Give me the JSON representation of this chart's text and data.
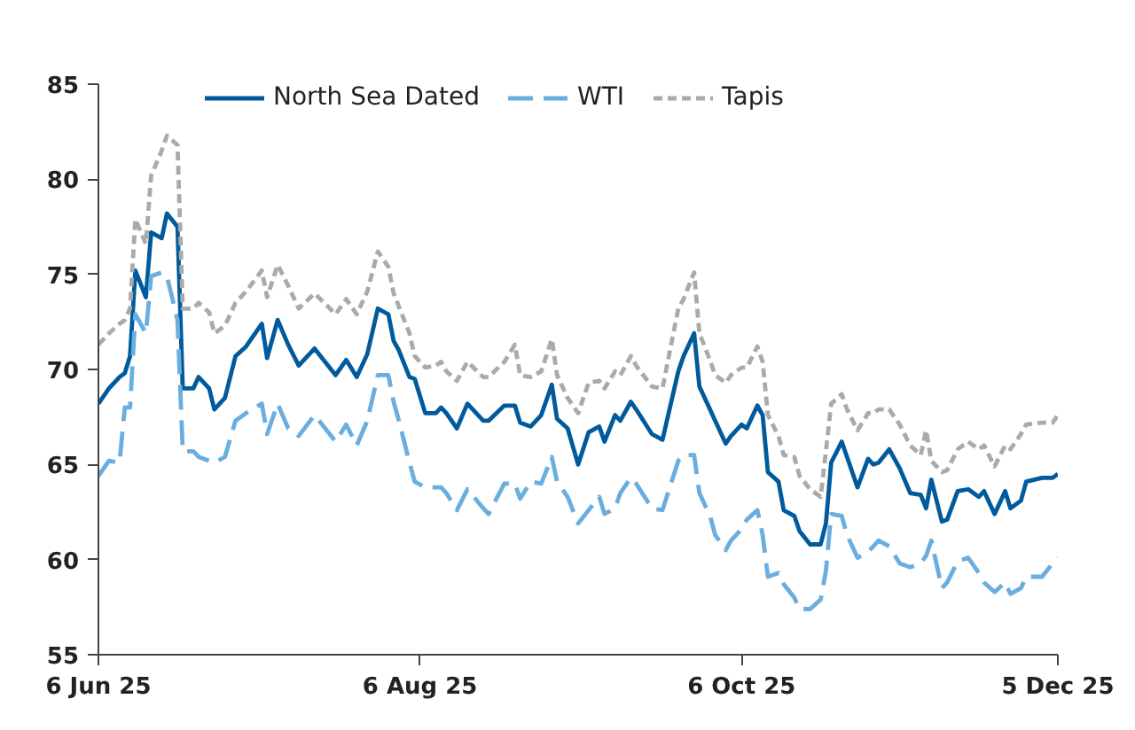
{
  "chart_data": {
    "type": "line",
    "x": [
      "2025-06-06",
      "2025-06-08",
      "2025-06-10",
      "2025-06-11",
      "2025-06-12",
      "2025-06-13",
      "2025-06-15",
      "2025-06-16",
      "2025-06-18",
      "2025-06-19",
      "2025-06-21",
      "2025-06-22",
      "2025-06-24",
      "2025-06-25",
      "2025-06-27",
      "2025-06-28",
      "2025-06-30",
      "2025-07-02",
      "2025-07-04",
      "2025-07-07",
      "2025-07-08",
      "2025-07-10",
      "2025-07-12",
      "2025-07-14",
      "2025-07-17",
      "2025-07-21",
      "2025-07-23",
      "2025-07-25",
      "2025-07-27",
      "2025-07-29",
      "2025-07-31",
      "2025-08-01",
      "2025-08-02",
      "2025-08-04",
      "2025-08-05",
      "2025-08-07",
      "2025-08-09",
      "2025-08-10",
      "2025-08-11",
      "2025-08-13",
      "2025-08-15",
      "2025-08-18",
      "2025-08-19",
      "2025-08-22",
      "2025-08-24",
      "2025-08-25",
      "2025-08-27",
      "2025-08-29",
      "2025-08-31",
      "2025-09-01",
      "2025-09-03",
      "2025-09-05",
      "2025-09-07",
      "2025-09-09",
      "2025-09-10",
      "2025-09-12",
      "2025-09-13",
      "2025-09-15",
      "2025-09-16",
      "2025-09-19",
      "2025-09-21",
      "2025-09-24",
      "2025-09-25",
      "2025-09-27",
      "2025-09-28",
      "2025-09-30",
      "2025-10-01",
      "2025-10-03",
      "2025-10-04",
      "2025-10-06",
      "2025-10-07",
      "2025-10-09",
      "2025-10-10",
      "2025-10-11",
      "2025-10-13",
      "2025-10-14",
      "2025-10-16",
      "2025-10-17",
      "2025-10-19",
      "2025-10-21",
      "2025-10-22",
      "2025-10-23",
      "2025-10-25",
      "2025-10-26",
      "2025-10-28",
      "2025-10-30",
      "2025-10-31",
      "2025-11-01",
      "2025-11-03",
      "2025-11-05",
      "2025-11-07",
      "2025-11-09",
      "2025-11-10",
      "2025-11-11",
      "2025-11-13",
      "2025-11-14",
      "2025-11-16",
      "2025-11-18",
      "2025-11-20",
      "2025-11-21",
      "2025-11-23",
      "2025-11-25",
      "2025-11-26",
      "2025-11-28",
      "2025-11-29",
      "2025-12-02",
      "2025-12-04",
      "2025-12-05"
    ],
    "series": [
      {
        "name": "North Sea Dated",
        "color": "#005a9c",
        "line_style": "solid",
        "values": [
          68.2,
          69.0,
          69.6,
          69.8,
          70.7,
          75.2,
          73.8,
          77.2,
          76.9,
          78.2,
          77.5,
          69.0,
          69.0,
          69.6,
          69.0,
          67.9,
          68.5,
          70.7,
          71.2,
          72.4,
          70.6,
          72.6,
          71.3,
          70.2,
          71.1,
          69.7,
          70.5,
          69.6,
          70.8,
          73.2,
          72.9,
          71.5,
          71.0,
          69.6,
          69.5,
          67.7,
          67.7,
          68.0,
          67.7,
          66.9,
          68.2,
          67.3,
          67.3,
          68.1,
          68.1,
          67.2,
          67.0,
          67.6,
          69.2,
          67.4,
          66.9,
          65.0,
          66.7,
          67.0,
          66.2,
          67.6,
          67.3,
          68.3,
          67.9,
          66.6,
          66.3,
          69.9,
          70.7,
          71.9,
          69.1,
          67.9,
          67.3,
          66.1,
          66.5,
          67.1,
          66.9,
          68.1,
          67.6,
          64.6,
          64.1,
          62.6,
          62.3,
          61.5,
          60.8,
          60.8,
          61.9,
          65.1,
          66.2,
          65.4,
          63.8,
          65.3,
          65.0,
          65.1,
          65.8,
          64.8,
          63.5,
          63.4,
          62.7,
          64.2,
          62.0,
          62.1,
          63.6,
          63.7,
          63.3,
          63.6,
          62.4,
          63.6,
          62.7,
          63.1,
          64.1,
          64.3,
          64.3,
          64.5
        ]
      },
      {
        "name": "WTI",
        "color": "#6aaee0",
        "line_style": "dashed",
        "values": [
          64.4,
          65.2,
          65.1,
          68.0,
          68.0,
          72.9,
          71.9,
          74.9,
          75.1,
          74.9,
          72.6,
          65.7,
          65.7,
          65.4,
          65.2,
          65.1,
          65.4,
          67.3,
          67.7,
          68.2,
          66.6,
          68.2,
          66.9,
          66.5,
          67.6,
          66.2,
          67.1,
          66.0,
          67.3,
          69.7,
          69.7,
          68.3,
          67.3,
          65.1,
          64.1,
          63.8,
          63.8,
          63.8,
          63.5,
          62.6,
          63.7,
          62.7,
          62.4,
          64.0,
          64.0,
          63.2,
          64.1,
          64.0,
          65.4,
          64.1,
          63.3,
          61.9,
          62.6,
          63.3,
          62.4,
          62.7,
          63.5,
          64.3,
          64.0,
          62.7,
          62.6,
          65.2,
          65.5,
          65.5,
          63.5,
          62.3,
          61.3,
          60.5,
          61.0,
          61.6,
          62.1,
          62.6,
          61.3,
          59.1,
          59.3,
          58.7,
          58.0,
          57.4,
          57.4,
          57.9,
          59.4,
          62.4,
          62.3,
          61.3,
          60.1,
          60.4,
          60.7,
          61.0,
          60.7,
          59.8,
          59.6,
          59.8,
          60.2,
          61.0,
          58.5,
          58.8,
          59.9,
          60.1,
          59.3,
          58.8,
          58.3,
          58.8,
          58.2,
          58.5,
          59.1,
          59.1,
          59.8,
          60.1
        ]
      },
      {
        "name": "Tapis",
        "color": "#aaaaaa",
        "line_style": "dotted",
        "values": [
          71.3,
          71.9,
          72.4,
          72.6,
          73.2,
          77.9,
          76.6,
          80.2,
          81.5,
          82.3,
          81.8,
          73.2,
          73.2,
          73.5,
          73.0,
          71.9,
          72.3,
          73.5,
          74.1,
          75.2,
          73.8,
          75.5,
          74.4,
          73.2,
          74.0,
          72.9,
          73.7,
          72.9,
          74.1,
          76.2,
          75.4,
          74.0,
          73.3,
          71.9,
          70.7,
          70.1,
          70.2,
          70.4,
          69.9,
          69.4,
          70.4,
          69.6,
          69.6,
          70.4,
          71.3,
          69.7,
          69.6,
          69.9,
          71.6,
          69.7,
          68.5,
          67.7,
          69.3,
          69.4,
          69.0,
          69.9,
          69.7,
          70.7,
          70.2,
          69.1,
          69.0,
          73.2,
          73.7,
          75.1,
          71.9,
          70.5,
          69.7,
          69.3,
          69.7,
          70.1,
          70.1,
          71.2,
          70.4,
          67.6,
          66.5,
          65.5,
          65.4,
          64.4,
          63.7,
          63.3,
          65.7,
          68.2,
          68.7,
          67.9,
          66.8,
          67.7,
          67.7,
          67.9,
          67.9,
          67.1,
          66.0,
          65.5,
          66.8,
          65.2,
          64.6,
          64.7,
          65.8,
          66.2,
          65.8,
          66.0,
          64.9,
          66.0,
          65.8,
          66.6,
          67.1,
          67.2,
          67.2,
          67.6
        ]
      }
    ],
    "xlim": [
      "2025-06-06",
      "2025-12-05"
    ],
    "xticks": [
      {
        "value": "2025-06-06",
        "label": "6 Jun 25"
      },
      {
        "value": "2025-08-06",
        "label": "6 Aug 25"
      },
      {
        "value": "2025-10-06",
        "label": "6 Oct 25"
      },
      {
        "value": "2025-12-05",
        "label": "5 Dec 25"
      }
    ],
    "ylim": [
      55,
      85
    ],
    "yticks": [
      55,
      60,
      65,
      70,
      75,
      80,
      85
    ],
    "grid": false,
    "legend": "top",
    "marker": "none"
  }
}
